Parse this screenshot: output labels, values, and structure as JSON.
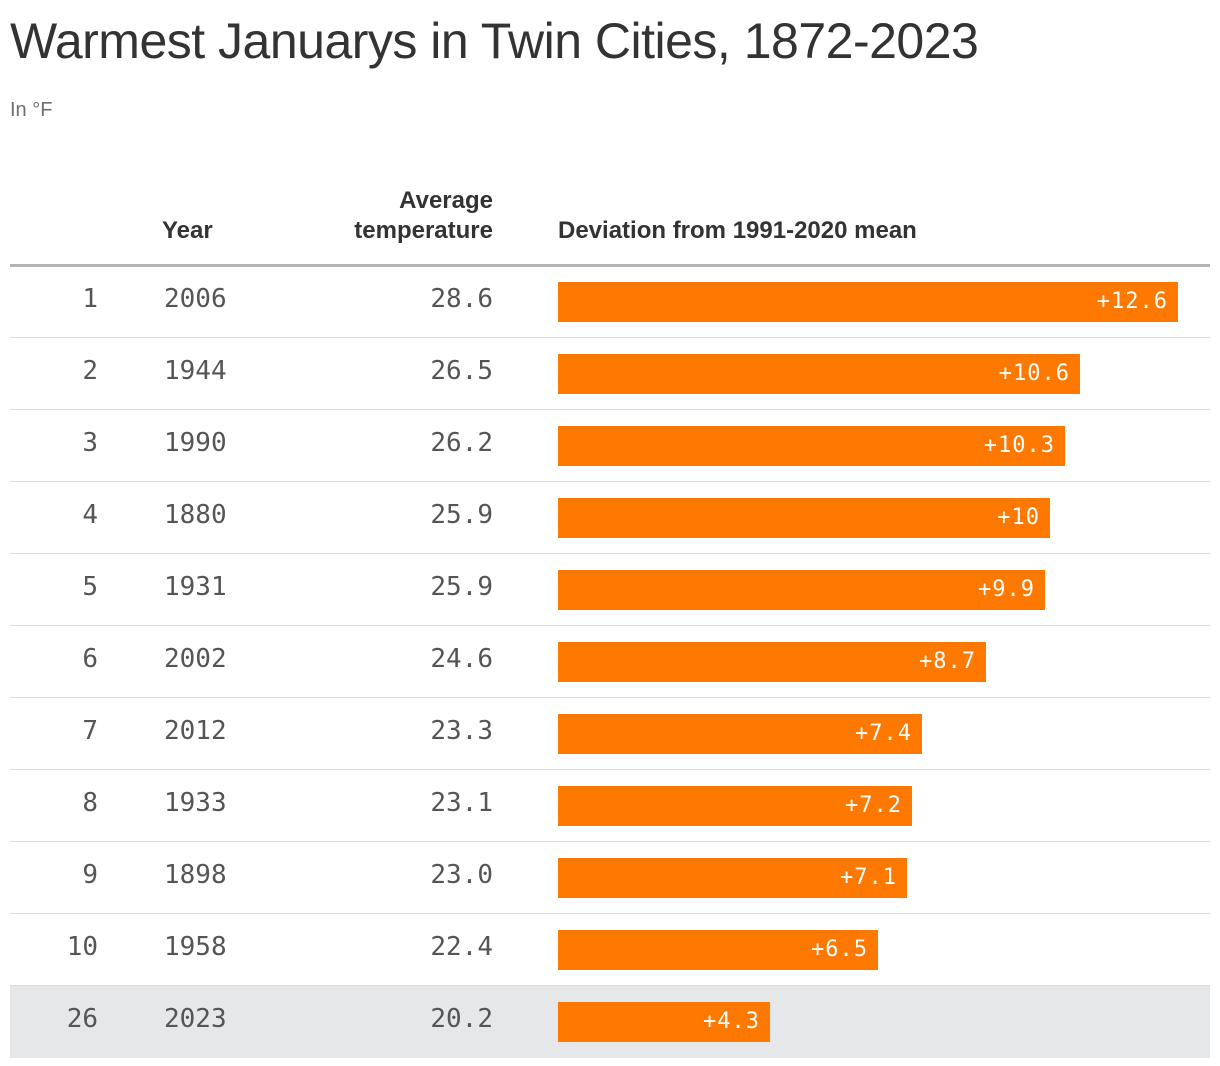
{
  "title": "Warmest Januarys in Twin Cities, 1872-2023",
  "subtitle": "In °F",
  "columns": {
    "year": "Year",
    "avg": "Average temperature",
    "deviation": "Deviation from 1991-2020 mean"
  },
  "colors": {
    "bar": "#ff7900",
    "highlight_row": "#e6e7e9"
  },
  "chart_data": {
    "type": "table",
    "columns": [
      "",
      "Year",
      "Average temperature",
      "Deviation from 1991-2020 mean"
    ],
    "rows": [
      {
        "rank": "1",
        "year": "2006",
        "avg": "28.6",
        "deviation": 12.6,
        "deviation_label": "+12.6",
        "highlight": false
      },
      {
        "rank": "2",
        "year": "1944",
        "avg": "26.5",
        "deviation": 10.6,
        "deviation_label": "+10.6",
        "highlight": false
      },
      {
        "rank": "3",
        "year": "1990",
        "avg": "26.2",
        "deviation": 10.3,
        "deviation_label": "+10.3",
        "highlight": false
      },
      {
        "rank": "4",
        "year": "1880",
        "avg": "25.9",
        "deviation": 10.0,
        "deviation_label": "+10",
        "highlight": false
      },
      {
        "rank": "5",
        "year": "1931",
        "avg": "25.9",
        "deviation": 9.9,
        "deviation_label": "+9.9",
        "highlight": false
      },
      {
        "rank": "6",
        "year": "2002",
        "avg": "24.6",
        "deviation": 8.7,
        "deviation_label": "+8.7",
        "highlight": false
      },
      {
        "rank": "7",
        "year": "2012",
        "avg": "23.3",
        "deviation": 7.4,
        "deviation_label": "+7.4",
        "highlight": false
      },
      {
        "rank": "8",
        "year": "1933",
        "avg": "23.1",
        "deviation": 7.2,
        "deviation_label": "+7.2",
        "highlight": false
      },
      {
        "rank": "9",
        "year": "1898",
        "avg": "23.0",
        "deviation": 7.1,
        "deviation_label": "+7.1",
        "highlight": false
      },
      {
        "rank": "10",
        "year": "1958",
        "avg": "22.4",
        "deviation": 6.5,
        "deviation_label": "+6.5",
        "highlight": false
      },
      {
        "rank": "26",
        "year": "2023",
        "avg": "20.2",
        "deviation": 4.3,
        "deviation_label": "+4.3",
        "highlight": true
      }
    ]
  }
}
